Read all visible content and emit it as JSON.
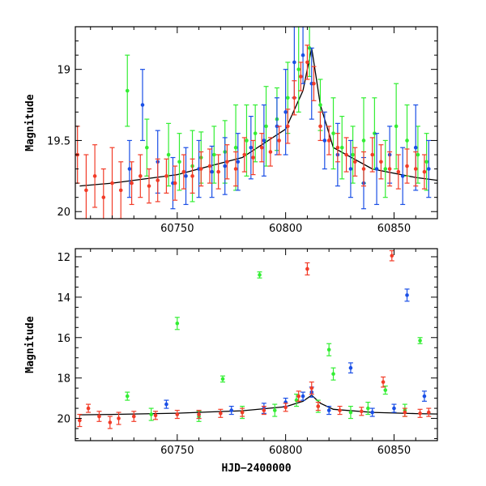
{
  "chart_data": [
    {
      "type": "scatter",
      "panel": "top",
      "ylabel": "Magnitude",
      "xlabel": "",
      "xlim": [
        60703,
        60870
      ],
      "ylim": [
        20.05,
        18.7
      ],
      "y_inverted": true,
      "xticks": [
        60750,
        60800,
        60850
      ],
      "xtick_labels": [
        "60750",
        "60800",
        "60850"
      ],
      "yticks": [
        19,
        19.5,
        20
      ],
      "ytick_labels": [
        "19",
        "19.5",
        "20"
      ],
      "colors": {
        "green": "#33ee33",
        "blue": "#1a4fe6",
        "red": "#f23c28",
        "model": "#000000"
      },
      "model_line": {
        "x": [
          60705,
          60720,
          60750,
          60780,
          60800,
          60808,
          60812,
          60816,
          60822,
          60840,
          60860,
          60870
        ],
        "y": [
          19.82,
          19.8,
          19.74,
          19.62,
          19.42,
          19.15,
          18.85,
          19.25,
          19.55,
          19.7,
          19.76,
          19.78
        ]
      },
      "series": [
        {
          "color": "#33ee33",
          "x": [
            60727,
            60736,
            60746,
            60751,
            60757,
            60761,
            60767,
            60772,
            60777,
            60782,
            60786,
            60791,
            60796,
            60801,
            60806,
            60811,
            60816,
            60822,
            60826,
            60831,
            60836,
            60841,
            60846,
            60851,
            60856,
            60861,
            60865
          ],
          "y": [
            19.15,
            19.55,
            19.6,
            19.65,
            19.68,
            19.62,
            19.6,
            19.58,
            19.55,
            19.5,
            19.45,
            19.4,
            19.35,
            19.2,
            19.0,
            18.85,
            19.25,
            19.45,
            19.55,
            19.6,
            19.5,
            19.45,
            19.7,
            19.4,
            19.5,
            19.6,
            19.65
          ],
          "err": [
            0.25,
            0.2,
            0.22,
            0.2,
            0.25,
            0.18,
            0.2,
            0.22,
            0.3,
            0.25,
            0.2,
            0.28,
            0.22,
            0.25,
            0.3,
            0.2,
            0.18,
            0.25,
            0.22,
            0.2,
            0.3,
            0.25,
            0.2,
            0.3,
            0.25,
            0.2,
            0.2
          ]
        },
        {
          "color": "#1a4fe6",
          "x": [
            60728,
            60734,
            60741,
            60748,
            60754,
            60760,
            60766,
            60772,
            60778,
            60784,
            60790,
            60796,
            60800,
            60804,
            60808,
            60812,
            60818,
            60824,
            60830,
            60836,
            60842,
            60848,
            60854,
            60860,
            60866
          ],
          "y": [
            19.7,
            19.25,
            19.65,
            19.8,
            19.75,
            19.7,
            19.72,
            19.68,
            19.65,
            19.55,
            19.5,
            19.4,
            19.3,
            18.95,
            18.9,
            19.1,
            19.5,
            19.6,
            19.7,
            19.8,
            19.7,
            19.6,
            19.75,
            19.55,
            19.7
          ],
          "err": [
            0.2,
            0.25,
            0.22,
            0.18,
            0.2,
            0.2,
            0.18,
            0.2,
            0.2,
            0.22,
            0.25,
            0.2,
            0.3,
            0.25,
            0.2,
            0.25,
            0.2,
            0.22,
            0.2,
            0.18,
            0.25,
            0.2,
            0.2,
            0.3,
            0.2
          ]
        },
        {
          "color": "#f23c28",
          "x": [
            60704,
            60708,
            60712,
            60716,
            60720,
            60724,
            60729,
            60733,
            60737,
            60741,
            60745,
            60749,
            60753,
            60757,
            60761,
            60765,
            60769,
            60773,
            60777,
            60781,
            60785,
            60789,
            60793,
            60797,
            60801,
            60804,
            60807,
            60810,
            60813,
            60816,
            60820,
            60824,
            60828,
            60832,
            60836,
            60840,
            60844,
            60848,
            60852,
            60856,
            60860,
            60864
          ],
          "y": [
            19.6,
            19.85,
            19.75,
            19.9,
            19.8,
            19.85,
            19.8,
            19.75,
            19.82,
            19.78,
            19.75,
            19.8,
            19.72,
            19.75,
            19.7,
            19.68,
            19.72,
            19.65,
            19.7,
            19.6,
            19.62,
            19.55,
            19.58,
            19.5,
            19.4,
            19.2,
            19.05,
            18.95,
            19.1,
            19.4,
            19.5,
            19.55,
            19.6,
            19.65,
            19.7,
            19.6,
            19.65,
            19.7,
            19.72,
            19.68,
            19.7,
            19.72
          ],
          "err": [
            0.2,
            0.25,
            0.22,
            0.2,
            0.25,
            0.2,
            0.15,
            0.15,
            0.12,
            0.15,
            0.12,
            0.12,
            0.12,
            0.12,
            0.12,
            0.12,
            0.12,
            0.12,
            0.12,
            0.12,
            0.12,
            0.1,
            0.1,
            0.1,
            0.12,
            0.12,
            0.1,
            0.12,
            0.12,
            0.1,
            0.1,
            0.1,
            0.12,
            0.1,
            0.12,
            0.12,
            0.12,
            0.12,
            0.12,
            0.12,
            0.12,
            0.12
          ]
        }
      ]
    },
    {
      "type": "scatter",
      "panel": "bottom",
      "ylabel": "Magnitude",
      "xlabel": "HJD−2400000",
      "xlim": [
        60703,
        60870
      ],
      "ylim": [
        21.1,
        11.6
      ],
      "y_inverted": true,
      "xticks": [
        60750,
        60800,
        60850
      ],
      "xtick_labels": [
        "60750",
        "60800",
        "60850"
      ],
      "yticks": [
        12,
        14,
        16,
        18,
        20
      ],
      "ytick_labels": [
        "12",
        "14",
        "16",
        "18",
        "20"
      ],
      "colors": {
        "green": "#33ee33",
        "blue": "#1a4fe6",
        "red": "#f23c28",
        "model": "#000000"
      },
      "model_line": {
        "x": [
          60705,
          60720,
          60750,
          60780,
          60800,
          60808,
          60812,
          60816,
          60822,
          60840,
          60860,
          60870
        ],
        "y": [
          19.82,
          19.8,
          19.74,
          19.62,
          19.42,
          19.15,
          18.85,
          19.25,
          19.55,
          19.7,
          19.76,
          19.78
        ]
      },
      "series": [
        {
          "color": "#33ee33",
          "x": [
            60727,
            60738,
            60750,
            60760,
            60771,
            60780,
            60788,
            60795,
            60805,
            60815,
            60820,
            60822,
            60830,
            60838,
            60846,
            60855,
            60862
          ],
          "y": [
            18.9,
            19.8,
            15.3,
            19.9,
            18.05,
            19.7,
            12.9,
            19.6,
            19.1,
            19.4,
            16.6,
            17.8,
            19.7,
            19.5,
            18.6,
            19.6,
            16.15
          ],
          "err": [
            0.2,
            0.3,
            0.3,
            0.25,
            0.15,
            0.3,
            0.15,
            0.3,
            0.3,
            0.3,
            0.3,
            0.3,
            0.3,
            0.3,
            0.2,
            0.3,
            0.15
          ]
        },
        {
          "color": "#1a4fe6",
          "x": [
            60745,
            60760,
            60775,
            60790,
            60800,
            60808,
            60812,
            60820,
            60830,
            60840,
            60850,
            60856,
            60864
          ],
          "y": [
            19.3,
            19.8,
            19.6,
            19.5,
            19.2,
            18.9,
            18.7,
            19.6,
            17.5,
            19.7,
            19.5,
            13.9,
            18.9
          ],
          "err": [
            0.2,
            0.2,
            0.2,
            0.25,
            0.2,
            0.2,
            0.25,
            0.2,
            0.25,
            0.2,
            0.2,
            0.3,
            0.25
          ]
        },
        {
          "color": "#f23c28",
          "x": [
            60705,
            60709,
            60714,
            60719,
            60723,
            60730,
            60740,
            60750,
            60760,
            60770,
            60780,
            60790,
            60800,
            60806,
            60810,
            60812,
            60815,
            60825,
            60835,
            60845,
            60849,
            60855,
            60862,
            60866
          ],
          "y": [
            20.1,
            19.5,
            19.9,
            20.2,
            20.0,
            19.9,
            19.85,
            19.8,
            19.8,
            19.75,
            19.7,
            19.6,
            19.45,
            18.9,
            12.6,
            18.5,
            19.4,
            19.6,
            19.65,
            18.2,
            11.95,
            19.7,
            19.75,
            19.7
          ],
          "err": [
            0.3,
            0.2,
            0.25,
            0.3,
            0.3,
            0.25,
            0.2,
            0.2,
            0.2,
            0.2,
            0.2,
            0.2,
            0.2,
            0.25,
            0.3,
            0.3,
            0.2,
            0.2,
            0.2,
            0.25,
            0.25,
            0.2,
            0.2,
            0.2
          ]
        }
      ]
    }
  ]
}
